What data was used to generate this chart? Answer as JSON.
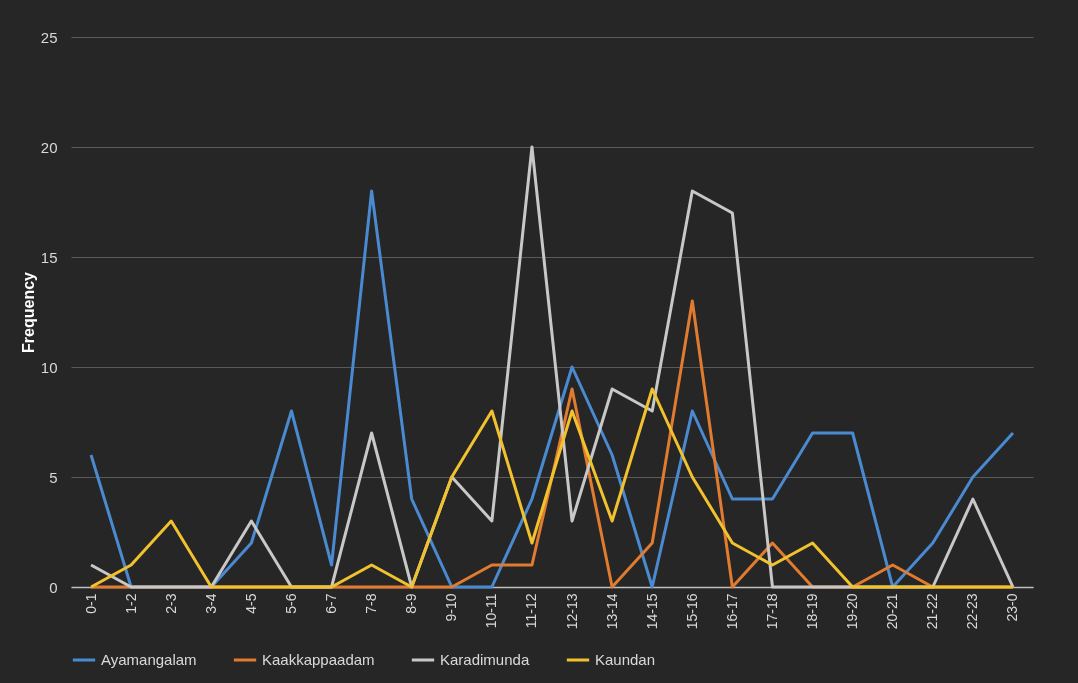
{
  "chart_data": {
    "type": "line",
    "ylabel": "Frequency",
    "categories": [
      "0-1",
      "1-2",
      "2-3",
      "3-4",
      "4-5",
      "5-6",
      "6-7",
      "7-8",
      "8-9",
      "9-10",
      "10-11",
      "11-12",
      "12-13",
      "13-14",
      "14-15",
      "15-16",
      "16-17",
      "17-18",
      "18-19",
      "19-20",
      "20-21",
      "21-22",
      "22-23",
      "23-0"
    ],
    "series": [
      {
        "name": "Ayamangalam",
        "color": "#4a8ad0",
        "values": [
          6,
          0,
          0,
          0,
          2,
          8,
          1,
          18,
          4,
          0,
          0,
          4,
          10,
          6,
          0,
          8,
          4,
          4,
          7,
          7,
          0,
          2,
          5,
          7
        ]
      },
      {
        "name": "Kaakkappaadam",
        "color": "#e07b30",
        "values": [
          0,
          0,
          0,
          0,
          0,
          0,
          0,
          0,
          0,
          0,
          1,
          1,
          9,
          0,
          2,
          13,
          0,
          2,
          0,
          0,
          1,
          0,
          0,
          0
        ]
      },
      {
        "name": "Karadimunda",
        "color": "#c8c8c8",
        "values": [
          1,
          0,
          0,
          0,
          3,
          0,
          0,
          7,
          0,
          5,
          3,
          20,
          3,
          9,
          8,
          18,
          17,
          0,
          0,
          0,
          0,
          0,
          4,
          0
        ]
      },
      {
        "name": "Kaundan",
        "color": "#f2c12e",
        "values": [
          0,
          1,
          3,
          0,
          0,
          0,
          0,
          1,
          0,
          5,
          8,
          2,
          8,
          3,
          9,
          5,
          2,
          1,
          2,
          0,
          0,
          0,
          0,
          0
        ]
      }
    ],
    "ylim": [
      0,
      25
    ],
    "yticks": [
      0,
      5,
      10,
      15,
      20,
      25
    ],
    "grid": "y",
    "legend": "bottom",
    "marker": "none",
    "line_style": "solid"
  }
}
